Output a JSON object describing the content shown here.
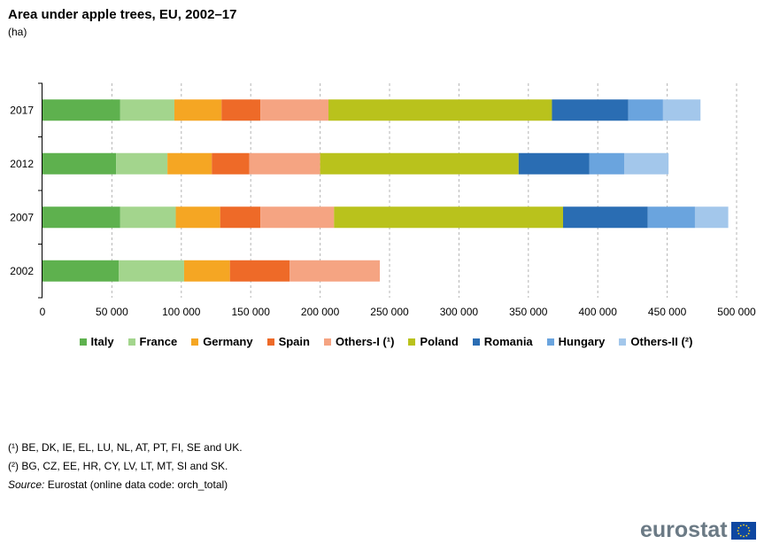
{
  "chart_data": {
    "type": "bar",
    "orientation": "horizontal",
    "stacked": true,
    "title": "Area under apple trees, EU, 2002–17",
    "subtitle": "(ha)",
    "xlabel": "",
    "ylabel": "",
    "xlim": [
      0,
      500000
    ],
    "xticks": [
      0,
      50000,
      100000,
      150000,
      200000,
      250000,
      300000,
      350000,
      400000,
      450000,
      500000
    ],
    "xtick_labels": [
      "0",
      "50 000",
      "100 000",
      "150 000",
      "200 000",
      "250 000",
      "300 000",
      "350 000",
      "400 000",
      "450 000",
      "500 000"
    ],
    "grid": "vertical dashed",
    "legend_position": "bottom",
    "categories": [
      "2017",
      "2012",
      "2007",
      "2002"
    ],
    "series": [
      {
        "name": "Italy",
        "color": "#5eb14e",
        "values": [
          56000,
          53000,
          56000,
          55000
        ]
      },
      {
        "name": "France",
        "color": "#a3d58d",
        "values": [
          39000,
          37000,
          40000,
          47000
        ]
      },
      {
        "name": "Germany",
        "color": "#f5a623",
        "values": [
          34000,
          32000,
          32000,
          33000
        ]
      },
      {
        "name": "Spain",
        "color": "#ee6a28",
        "values": [
          28000,
          27000,
          29000,
          43000
        ]
      },
      {
        "name": "Others-I (¹)",
        "color": "#f5a482",
        "values": [
          49000,
          51000,
          53000,
          65000
        ]
      },
      {
        "name": "Poland",
        "color": "#b9c21c",
        "values": [
          161000,
          143000,
          165000,
          0
        ]
      },
      {
        "name": "Romania",
        "color": "#2a6db3",
        "values": [
          55000,
          51000,
          61000,
          0
        ]
      },
      {
        "name": "Hungary",
        "color": "#6aa4de",
        "values": [
          25000,
          25000,
          34000,
          0
        ]
      },
      {
        "name": "Others-II (²)",
        "color": "#a3c7eb",
        "values": [
          27000,
          32000,
          24000,
          0
        ]
      }
    ]
  },
  "notes": {
    "note1": "(¹) BE, DK, IE, EL, LU, NL, AT, PT, FI, SE and UK.",
    "note2": "(²) BG, CZ, EE, HR, CY, LV, LT, MT, SI and SK.",
    "source_label": "Source:",
    "source_text": " Eurostat (online data code: orch_total)"
  },
  "logo": {
    "text": "eurostat",
    "icon": "eu-flag-icon"
  }
}
